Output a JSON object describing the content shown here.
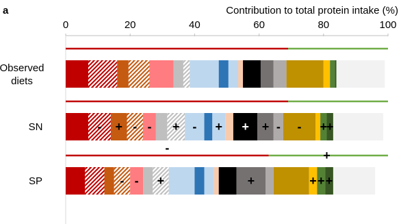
{
  "chart_data": {
    "type": "bar",
    "panel_label": "a",
    "xlabel": "Contribution to total protein intake (%)",
    "xlim": [
      0,
      100
    ],
    "xticks": [
      "0",
      "20",
      "40",
      "60",
      "80",
      "100"
    ],
    "categories": [
      "Observed diets",
      "SN",
      "SP"
    ],
    "category_lines": [
      [
        "Observed",
        "diets"
      ],
      [
        "SN"
      ],
      [
        "SP"
      ]
    ],
    "colors": {
      "red": "#c00000",
      "brown": "#c55a11",
      "pink": "#ff7c80",
      "gray_light": "#bfbfbf",
      "blue_light": "#bdd7ee",
      "blue": "#2e75b6",
      "peach": "#f8cbad",
      "black": "#000000",
      "gray_dark": "#767171",
      "gray_mid": "#afabab",
      "gold": "#bf9000",
      "yellow": "#ffc000",
      "green": "#548235",
      "green_dark": "#375623",
      "empty": "#f2f2f2",
      "animal_line": "#c00000",
      "plant_line": "#70ad47"
    },
    "bars": [
      {
        "category": "Observed diets",
        "animal_fraction": 69,
        "segments": [
          {
            "value": 7,
            "color": "red",
            "hatch": false,
            "sign": ""
          },
          {
            "value": 9,
            "color": "red",
            "hatch": true,
            "sign": ""
          },
          {
            "value": 3.5,
            "color": "brown",
            "hatch": false,
            "sign": ""
          },
          {
            "value": 6.5,
            "color": "brown",
            "hatch": true,
            "sign": ""
          },
          {
            "value": 7.5,
            "color": "pink",
            "hatch": false,
            "sign": ""
          },
          {
            "value": 3,
            "color": "gray_light",
            "hatch": false,
            "sign": ""
          },
          {
            "value": 2,
            "color": "gray_light",
            "hatch": true,
            "sign": ""
          },
          {
            "value": 9,
            "color": "blue_light",
            "hatch": false,
            "sign": ""
          },
          {
            "value": 3,
            "color": "blue",
            "hatch": false,
            "sign": ""
          },
          {
            "value": 3,
            "color": "blue_light",
            "hatch": false,
            "sign": ""
          },
          {
            "value": 1.5,
            "color": "peach",
            "hatch": false,
            "sign": ""
          },
          {
            "value": 5.5,
            "color": "black",
            "hatch": false,
            "sign": ""
          },
          {
            "value": 4,
            "color": "gray_dark",
            "hatch": false,
            "sign": ""
          },
          {
            "value": 4,
            "color": "gray_mid",
            "hatch": false,
            "sign": ""
          },
          {
            "value": 11.5,
            "color": "gold",
            "hatch": false,
            "sign": ""
          },
          {
            "value": 2,
            "color": "yellow",
            "hatch": false,
            "sign": ""
          },
          {
            "value": 1.5,
            "color": "green",
            "hatch": false,
            "sign": ""
          },
          {
            "value": 0.5,
            "color": "green_dark",
            "hatch": false,
            "sign": ""
          },
          {
            "value": 15,
            "color": "empty",
            "hatch": false,
            "sign": ""
          }
        ]
      },
      {
        "category": "SN",
        "animal_fraction": 69,
        "segments": [
          {
            "value": 7,
            "color": "red",
            "hatch": false,
            "sign": ""
          },
          {
            "value": 7,
            "color": "red",
            "hatch": true,
            "sign": "-"
          },
          {
            "value": 5,
            "color": "brown",
            "hatch": false,
            "sign": "+"
          },
          {
            "value": 5,
            "color": "brown",
            "hatch": true,
            "sign": "-"
          },
          {
            "value": 4,
            "color": "pink",
            "hatch": false,
            "sign": "-"
          },
          {
            "value": 3.5,
            "color": "gray_light",
            "hatch": false,
            "sign": ""
          },
          {
            "value": 5.5,
            "color": "gray_light",
            "hatch": true,
            "sign": "+"
          },
          {
            "value": 6,
            "color": "blue_light",
            "hatch": false,
            "sign": "-"
          },
          {
            "value": 2.5,
            "color": "blue",
            "hatch": false,
            "sign": ""
          },
          {
            "value": 4,
            "color": "blue_light",
            "hatch": false,
            "sign": "+"
          },
          {
            "value": 2.5,
            "color": "peach",
            "hatch": false,
            "sign": ""
          },
          {
            "value": 7.5,
            "color": "black",
            "hatch": false,
            "sign": "+"
          },
          {
            "value": 5,
            "color": "gray_dark",
            "hatch": false,
            "sign": "+"
          },
          {
            "value": 3,
            "color": "gray_mid",
            "hatch": false,
            "sign": "-"
          },
          {
            "value": 10,
            "color": "gold",
            "hatch": false,
            "sign": "-"
          },
          {
            "value": 1.5,
            "color": "yellow",
            "hatch": false,
            "sign": ""
          },
          {
            "value": 2,
            "color": "green",
            "hatch": false,
            "sign": "+"
          },
          {
            "value": 2,
            "color": "green_dark",
            "hatch": false,
            "sign": "+"
          },
          {
            "value": 15.5,
            "color": "empty",
            "hatch": false,
            "sign": ""
          }
        ]
      },
      {
        "category": "SP",
        "animal_fraction": 63,
        "animal_sign": "-",
        "plant_sign": "+",
        "segments": [
          {
            "value": 6,
            "color": "red",
            "hatch": false,
            "sign": ""
          },
          {
            "value": 6,
            "color": "red",
            "hatch": true,
            "sign": ""
          },
          {
            "value": 3,
            "color": "brown",
            "hatch": false,
            "sign": ""
          },
          {
            "value": 5,
            "color": "brown",
            "hatch": true,
            "sign": "-"
          },
          {
            "value": 4,
            "color": "pink",
            "hatch": false,
            "sign": "-"
          },
          {
            "value": 3,
            "color": "gray_light",
            "hatch": false,
            "sign": ""
          },
          {
            "value": 5,
            "color": "gray_light",
            "hatch": true,
            "sign": "+"
          },
          {
            "value": 8,
            "color": "blue_light",
            "hatch": false,
            "sign": ""
          },
          {
            "value": 3,
            "color": "blue",
            "hatch": false,
            "sign": ""
          },
          {
            "value": 3,
            "color": "blue_light",
            "hatch": false,
            "sign": ""
          },
          {
            "value": 1.5,
            "color": "peach",
            "hatch": false,
            "sign": ""
          },
          {
            "value": 5.5,
            "color": "black",
            "hatch": false,
            "sign": ""
          },
          {
            "value": 9,
            "color": "gray_dark",
            "hatch": false,
            "sign": "+"
          },
          {
            "value": 2.5,
            "color": "gray_mid",
            "hatch": false,
            "sign": ""
          },
          {
            "value": 11,
            "color": "gold",
            "hatch": false,
            "sign": ""
          },
          {
            "value": 2.5,
            "color": "yellow",
            "hatch": false,
            "sign": "+"
          },
          {
            "value": 2.5,
            "color": "green",
            "hatch": false,
            "sign": "+"
          },
          {
            "value": 2.5,
            "color": "green_dark",
            "hatch": false,
            "sign": "+"
          },
          {
            "value": 13,
            "color": "empty",
            "hatch": false,
            "sign": ""
          }
        ]
      }
    ]
  }
}
